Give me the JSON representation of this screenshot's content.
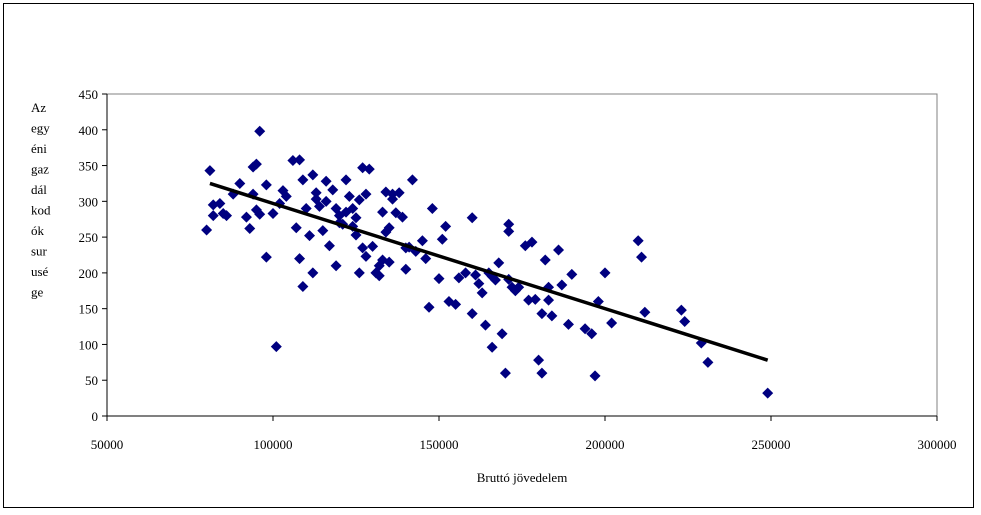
{
  "chart_data": {
    "type": "scatter",
    "title": "",
    "xlabel": "Bruttó jövedelem",
    "ylabel_lines": [
      "Az",
      "egy",
      "éni",
      "gaz",
      "dál",
      "kod",
      "ók",
      "sur",
      "usé",
      "ge"
    ],
    "xlim": [
      50000,
      300000
    ],
    "ylim": [
      0,
      450
    ],
    "xticks": [
      50000,
      100000,
      150000,
      200000,
      250000,
      300000
    ],
    "yticks": [
      0,
      50,
      100,
      150,
      200,
      250,
      300,
      350,
      400,
      450
    ],
    "grid": false,
    "legend": "none",
    "marker_color": "#000080",
    "trend_color": "#000000",
    "trendline": {
      "x": [
        81000,
        249000
      ],
      "y": [
        325,
        78
      ]
    },
    "series": [
      {
        "x": [
          80000,
          81000,
          82000,
          82000,
          84000,
          85000,
          86000,
          88000,
          90000,
          92000,
          93000,
          94000,
          94000,
          95000,
          95000,
          96000,
          96000,
          98000,
          98000,
          100000,
          101000,
          102000,
          103000,
          104000,
          106000,
          107000,
          108000,
          108000,
          109000,
          109000,
          110000,
          111000,
          112000,
          112000,
          113000,
          113000,
          114000,
          115000,
          116000,
          116000,
          117000,
          118000,
          119000,
          119000,
          120000,
          120000,
          121000,
          122000,
          122000,
          123000,
          124000,
          124000,
          125000,
          125000,
          126000,
          126000,
          127000,
          127000,
          128000,
          128000,
          129000,
          130000,
          131000,
          132000,
          132000,
          133000,
          133000,
          134000,
          134000,
          135000,
          135000,
          136000,
          136000,
          137000,
          138000,
          139000,
          140000,
          140000,
          141000,
          142000,
          143000,
          145000,
          146000,
          147000,
          148000,
          150000,
          151000,
          152000,
          153000,
          155000,
          156000,
          158000,
          160000,
          160000,
          161000,
          162000,
          163000,
          164000,
          165000,
          166000,
          166000,
          167000,
          168000,
          169000,
          170000,
          171000,
          171000,
          171000,
          172000,
          173000,
          174000,
          176000,
          177000,
          178000,
          179000,
          180000,
          181000,
          181000,
          182000,
          183000,
          183000,
          184000,
          186000,
          187000,
          189000,
          190000,
          194000,
          196000,
          197000,
          198000,
          200000,
          202000,
          210000,
          211000,
          212000,
          223000,
          224000,
          229000,
          231000,
          249000
        ],
        "y": [
          260,
          343,
          295,
          280,
          297,
          283,
          280,
          310,
          325,
          278,
          262,
          348,
          310,
          352,
          288,
          398,
          282,
          323,
          222,
          283,
          97,
          297,
          315,
          307,
          357,
          263,
          220,
          358,
          181,
          330,
          290,
          252,
          200,
          337,
          312,
          303,
          293,
          259,
          300,
          328,
          238,
          316,
          210,
          290,
          280,
          270,
          268,
          285,
          330,
          307,
          290,
          265,
          277,
          253,
          302,
          200,
          347,
          235,
          223,
          310,
          345,
          237,
          200,
          210,
          196,
          218,
          285,
          313,
          257,
          215,
          263,
          310,
          303,
          284,
          312,
          278,
          205,
          235,
          236,
          330,
          230,
          245,
          220,
          152,
          290,
          192,
          247,
          265,
          160,
          156,
          193,
          200,
          143,
          277,
          197,
          185,
          172,
          127,
          200,
          96,
          195,
          190,
          214,
          115,
          60,
          258,
          268,
          191,
          180,
          175,
          180,
          238,
          162,
          243,
          163,
          78,
          143,
          60,
          218,
          162,
          180,
          140,
          232,
          183,
          128,
          198,
          122,
          115,
          56,
          160,
          200,
          130,
          245,
          222,
          145,
          148,
          132,
          102,
          75,
          32
        ]
      }
    ]
  }
}
